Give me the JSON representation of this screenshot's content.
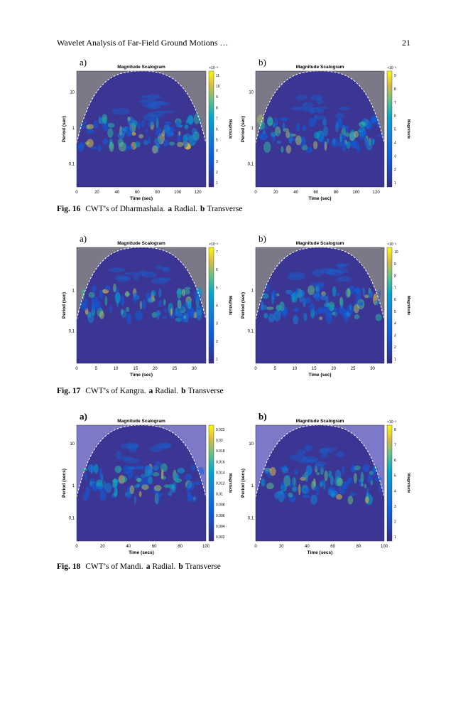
{
  "header": {
    "title": "Wavelet Analysis of Far-Field Ground Motions …",
    "page": "21"
  },
  "figures": [
    {
      "caption": {
        "label": "Fig. 16",
        "text": "CWT’s of Dharmashala.",
        "a": "a",
        "a_text": "Radial.",
        "b": "b",
        "b_text": "Transverse"
      },
      "panels": [
        {
          "letter": "a)",
          "title": "Magnitude Scalogram",
          "ylabel": "Period (sec)",
          "xlabel": "Time (sec)",
          "yticks": [
            "10",
            "1",
            "0.1"
          ],
          "xticks": [
            "0",
            "20",
            "40",
            "60",
            "80",
            "100",
            "120"
          ],
          "colorbar_label": "Magnitude",
          "colorbar_exp": "×10⁻³",
          "colorbar_ticks": [
            "11",
            "10",
            "9",
            "8",
            "7",
            "6",
            "5",
            "4",
            "3",
            "2",
            "1"
          ]
        },
        {
          "letter": "b)",
          "title": "Magnitude Scalogram",
          "ylabel": "Period (sec)",
          "xlabel": "Time (sec)",
          "yticks": [
            "10",
            "1",
            "0.1"
          ],
          "xticks": [
            "0",
            "20",
            "40",
            "60",
            "80",
            "100",
            "120"
          ],
          "colorbar_label": "Magnitude",
          "colorbar_exp": "×10⁻³",
          "colorbar_ticks": [
            "9",
            "8",
            "7",
            "6",
            "5",
            "4",
            "3",
            "2",
            "1"
          ]
        }
      ]
    },
    {
      "caption": {
        "label": "Fig. 17",
        "text": "CWT’s of Kangra.",
        "a": "a",
        "a_text": "Radial.",
        "b": "b",
        "b_text": "Transverse"
      },
      "panels": [
        {
          "letter": "a)",
          "title": "Magnitude Scalogram",
          "ylabel": "Period (sec)",
          "xlabel": "Time (sec)",
          "yticks": [
            "1",
            "0.1"
          ],
          "xticks": [
            "0",
            "5",
            "10",
            "15",
            "20",
            "25",
            "30"
          ],
          "colorbar_label": "Magnitude",
          "colorbar_exp": "×10⁻³",
          "colorbar_ticks": [
            "7",
            "6",
            "5",
            "4",
            "3",
            "2",
            "1"
          ]
        },
        {
          "letter": "b)",
          "title": "Magnitude Scalogram",
          "ylabel": "Period (sec)",
          "xlabel": "Time (sec)",
          "yticks": [
            "1",
            "0.1"
          ],
          "xticks": [
            "0",
            "5",
            "10",
            "15",
            "20",
            "25",
            "30"
          ],
          "colorbar_label": "Magnitude",
          "colorbar_exp": "×10⁻³",
          "colorbar_ticks": [
            "10",
            "9",
            "8",
            "7",
            "6",
            "5",
            "4",
            "3",
            "2",
            "1"
          ]
        }
      ]
    },
    {
      "caption": {
        "label": "Fig. 18",
        "text": "CWT’s of Mandi.",
        "a": "a",
        "a_text": "Radial.",
        "b": "b",
        "b_text": "Transverse"
      },
      "panels": [
        {
          "letter": "a)",
          "title": "Magnitude Scalogram",
          "ylabel": "Period (secs)",
          "xlabel": "Time (secs)",
          "yticks": [
            "10",
            "1",
            "0.1"
          ],
          "xticks": [
            "0",
            "20",
            "40",
            "60",
            "80",
            "100"
          ],
          "colorbar_label": "Magnitude",
          "colorbar_exp": null,
          "colorbar_ticks": [
            "0.022",
            "0.02",
            "0.018",
            "0.016",
            "0.014",
            "0.012",
            "0.01",
            "0.008",
            "0.006",
            "0.004",
            "0.002"
          ]
        },
        {
          "letter": "b)",
          "title": "Magnitude Scalogram",
          "ylabel": "Period (secs)",
          "xlabel": "Time (secs)",
          "yticks": [
            "10",
            "1",
            "0.1"
          ],
          "xticks": [
            "0",
            "20",
            "40",
            "60",
            "80",
            "100"
          ],
          "colorbar_label": "Magnitude",
          "colorbar_exp": "×10⁻³",
          "colorbar_ticks": [
            "8",
            "7",
            "6",
            "5",
            "4",
            "3",
            "2",
            "1"
          ]
        }
      ]
    }
  ]
}
